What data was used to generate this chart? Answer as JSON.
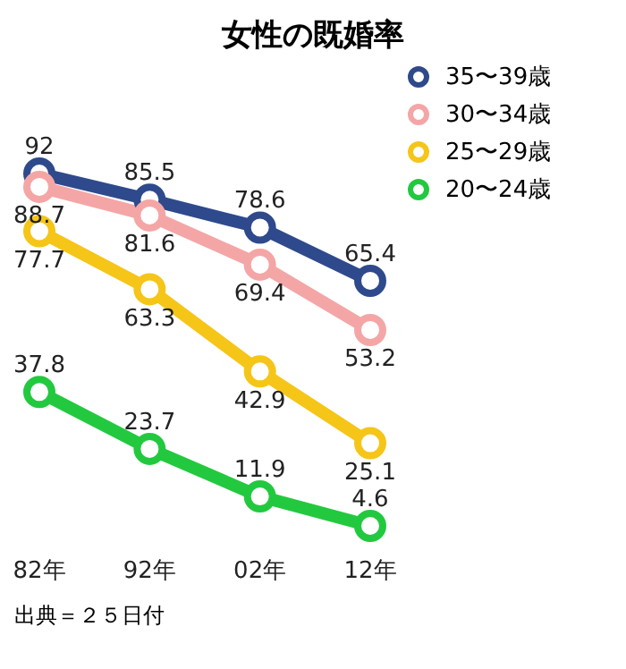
{
  "chart_data": {
    "type": "line",
    "title": "女性の既婚率",
    "categories": [
      "82年",
      "92年",
      "02年",
      "12年"
    ],
    "series": [
      {
        "name": "35〜39歳",
        "color": "#2e4a8c",
        "values": [
          92,
          85.5,
          78.6,
          65.4
        ]
      },
      {
        "name": "30〜34歳",
        "color": "#f4a6a6",
        "values": [
          88.7,
          81.6,
          69.4,
          53.2
        ]
      },
      {
        "name": "25〜29歳",
        "color": "#f5c518",
        "values": [
          77.7,
          63.3,
          42.9,
          25.1
        ]
      },
      {
        "name": "20〜24歳",
        "color": "#22c93f",
        "values": [
          37.8,
          23.7,
          11.9,
          4.6
        ]
      }
    ],
    "data_labels": true,
    "legend": "top right",
    "marker": "circle",
    "line_style": "solid",
    "grid": false,
    "annotations": [
      "出典＝２５日付"
    ]
  }
}
